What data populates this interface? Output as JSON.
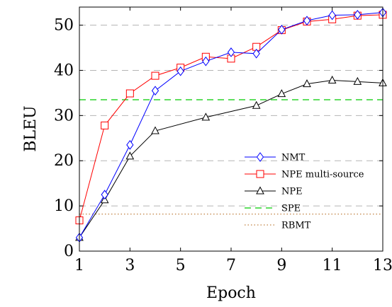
{
  "chart_data": {
    "type": "line",
    "xlabel": "Epoch",
    "ylabel": "BLEU",
    "xlim": [
      1,
      13
    ],
    "ylim": [
      0,
      54
    ],
    "xticks": [
      1,
      3,
      5,
      7,
      9,
      11,
      13
    ],
    "yticks": [
      0,
      10,
      20,
      30,
      40,
      50
    ],
    "grid": "horizontal dashed at major y ticks",
    "legend_position": "lower-right",
    "x": [
      1,
      2,
      3,
      4,
      5,
      6,
      7,
      8,
      9,
      10,
      11,
      12,
      13
    ],
    "series": [
      {
        "name": "NMT",
        "color": "#0000ff",
        "marker": "diamond",
        "style": "solid",
        "values": [
          3.0,
          12.5,
          23.5,
          35.5,
          39.8,
          42.0,
          44.0,
          43.7,
          49.0,
          51.0,
          52.2,
          52.3,
          52.8
        ]
      },
      {
        "name": "NPE multi-source",
        "color": "#ff0000",
        "marker": "square",
        "style": "solid",
        "values": [
          6.8,
          27.8,
          34.9,
          38.8,
          40.6,
          43.0,
          42.6,
          45.2,
          48.9,
          50.8,
          51.3,
          52.1,
          52.3
        ]
      },
      {
        "name": "NPE",
        "color": "#000000",
        "marker": "triangle",
        "style": "solid",
        "values": [
          3.0,
          11.3,
          21.0,
          26.6,
          null,
          29.6,
          null,
          32.2,
          34.8,
          37.0,
          37.8,
          37.5,
          37.2
        ]
      },
      {
        "name": "SPE",
        "color": "#00cc00",
        "marker": "none",
        "style": "dashed",
        "values": [
          33.5,
          33.5,
          33.5,
          33.5,
          33.5,
          33.5,
          33.5,
          33.5,
          33.5,
          33.5,
          33.5,
          33.5,
          33.5
        ]
      },
      {
        "name": "RBMT",
        "color": "#c08040",
        "marker": "none",
        "style": "dotted",
        "values": [
          8.2,
          8.2,
          8.2,
          8.2,
          8.2,
          8.2,
          8.2,
          8.2,
          8.2,
          8.2,
          8.2,
          8.2,
          8.2
        ]
      }
    ]
  }
}
